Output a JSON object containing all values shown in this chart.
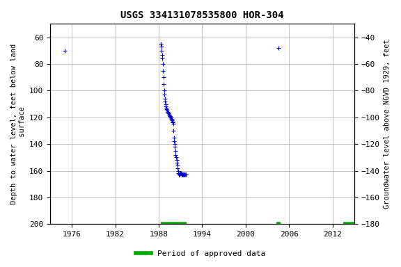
{
  "title": "USGS 334131078535800 HOR-304",
  "ylabel_left": "Depth to water level, feet below land\n surface",
  "ylabel_right": "Groundwater level above NGVD 1929, feet",
  "xlim": [
    1973,
    2015
  ],
  "ylim_left": [
    200,
    50
  ],
  "ylim_right": [
    -180,
    -30
  ],
  "xticks": [
    1976,
    1982,
    1988,
    1994,
    2000,
    2006,
    2012
  ],
  "yticks_left": [
    60,
    80,
    100,
    120,
    140,
    160,
    180,
    200
  ],
  "yticks_right": [
    -40,
    -60,
    -80,
    -100,
    -120,
    -140,
    -160,
    -180
  ],
  "background_color": "#ffffff",
  "grid_color": "#aaaaaa",
  "data_color": "#0000cc",
  "approved_color": "#00aa00",
  "scatter_x": [
    1975.0,
    1988.3,
    1988.35,
    1988.4,
    1988.45,
    1988.5,
    1988.55,
    1988.6,
    1988.65,
    1988.7,
    1988.75,
    1988.8,
    1988.85,
    1988.9,
    1988.95,
    1989.0,
    1989.05,
    1989.1,
    1989.15,
    1989.2,
    1989.25,
    1989.3,
    1989.35,
    1989.4,
    1989.45,
    1989.5,
    1989.55,
    1989.6,
    1989.65,
    1989.7,
    1989.75,
    1989.8,
    1989.85,
    1989.9,
    1989.95,
    1990.0,
    1990.05,
    1990.1,
    1990.15,
    1990.2,
    1990.25,
    1990.3,
    1990.35,
    1990.4,
    1990.45,
    1990.5,
    1990.55,
    1990.6,
    1990.65,
    1990.7,
    1990.75,
    1990.8,
    1990.85,
    1990.9,
    1990.95,
    1991.0,
    1991.05,
    1991.1,
    1991.15,
    1991.2,
    1991.25,
    1991.3,
    1991.35,
    1991.4,
    1991.45,
    1991.5,
    1991.55,
    1991.6,
    1991.65,
    1991.7,
    1991.75,
    2004.5
  ],
  "scatter_y": [
    70,
    65,
    67,
    70,
    73,
    76,
    80,
    85,
    90,
    95,
    100,
    103,
    106,
    108,
    110,
    112,
    113,
    114,
    115,
    116,
    116,
    117,
    117,
    118,
    118,
    119,
    119,
    120,
    120,
    120,
    121,
    121,
    122,
    123,
    124,
    125,
    130,
    135,
    138,
    140,
    142,
    145,
    148,
    150,
    152,
    154,
    156,
    158,
    160,
    162,
    163,
    163,
    163,
    163,
    162,
    162,
    162,
    162,
    163,
    163,
    163,
    163,
    163,
    163,
    163,
    163,
    163,
    163,
    163,
    163,
    163,
    68
  ],
  "approved_bars": [
    {
      "x_start": 1988.3,
      "x_end": 1991.8,
      "y": 200
    },
    {
      "x_start": 2004.3,
      "x_end": 2004.8,
      "y": 200
    },
    {
      "x_start": 2013.5,
      "x_end": 2015.0,
      "y": 200
    }
  ],
  "legend_label": "Period of approved data"
}
